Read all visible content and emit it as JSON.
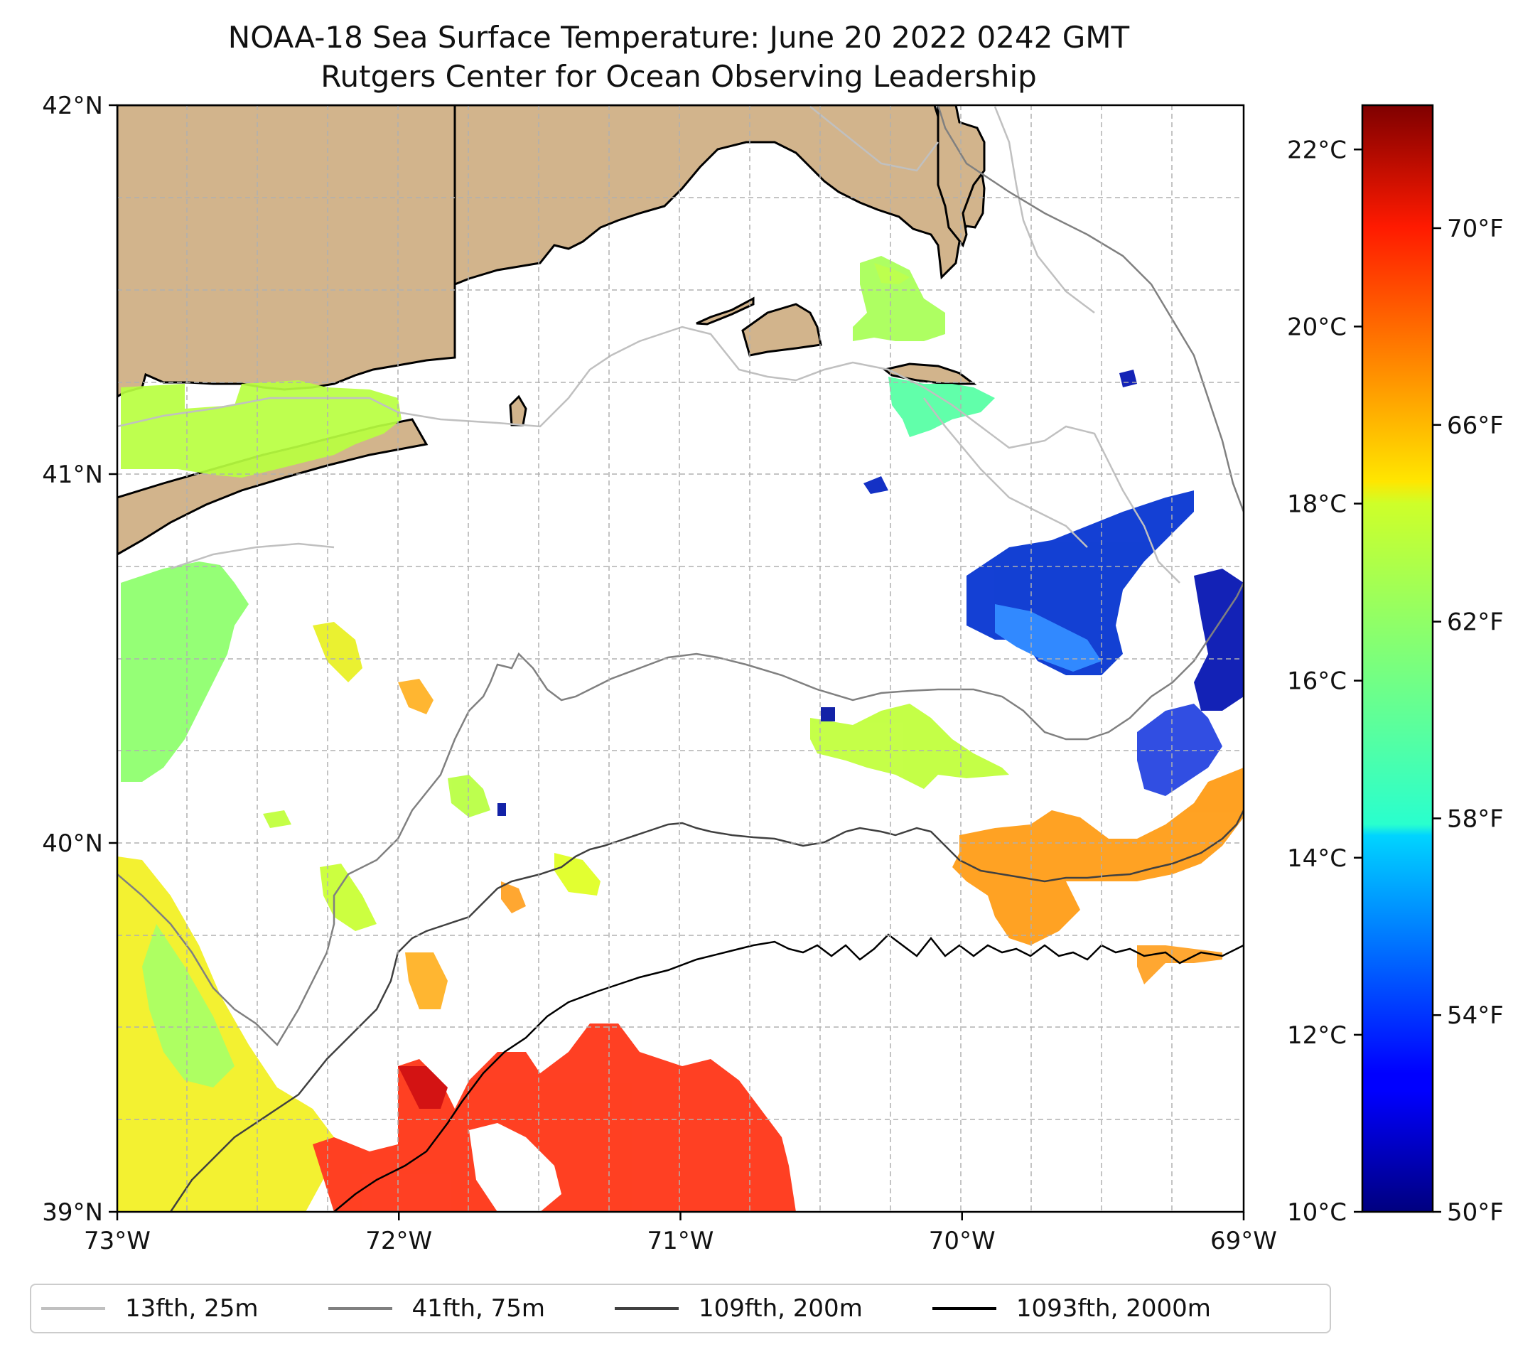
{
  "title": {
    "line1": "NOAA-18 Sea Surface Temperature: June 20 2022 0242 GMT",
    "line2": "Rutgers Center for Ocean Observing Leadership"
  },
  "map": {
    "lat_labels": [
      "42°N",
      "41°N",
      "40°N",
      "39°N"
    ],
    "lat_values": [
      42,
      41,
      40,
      39
    ],
    "lon_labels": [
      "73°W",
      "72°W",
      "71°W",
      "70°W",
      "69°W"
    ],
    "lon_values": [
      -73,
      -72,
      -71,
      -70,
      -69
    ],
    "extent": {
      "lon_min": -73,
      "lon_max": -69,
      "lat_min": 39,
      "lat_max": 42
    },
    "land_color": "#d2b48c",
    "coast_color": "#000000"
  },
  "colorbar": {
    "celsius_labels": [
      "22°C",
      "20°C",
      "18°C",
      "16°C",
      "14°C",
      "12°C",
      "10°C"
    ],
    "celsius_values": [
      22,
      20,
      18,
      16,
      14,
      12,
      10
    ],
    "fahrenheit_labels": [
      "70°F",
      "66°F",
      "62°F",
      "58°F",
      "54°F",
      "50°F"
    ],
    "fahrenheit_values": [
      70,
      66,
      62,
      58,
      54,
      50
    ],
    "range_f": [
      50,
      72.5
    ],
    "colormap": "jet"
  },
  "legend": {
    "items": [
      {
        "label": "13fth, 25m",
        "color": "#c0c0c0"
      },
      {
        "label": "41fth, 75m",
        "color": "#808080"
      },
      {
        "label": "109fth, 200m",
        "color": "#404040"
      },
      {
        "label": "1093fth, 2000m",
        "color": "#000000"
      }
    ]
  }
}
